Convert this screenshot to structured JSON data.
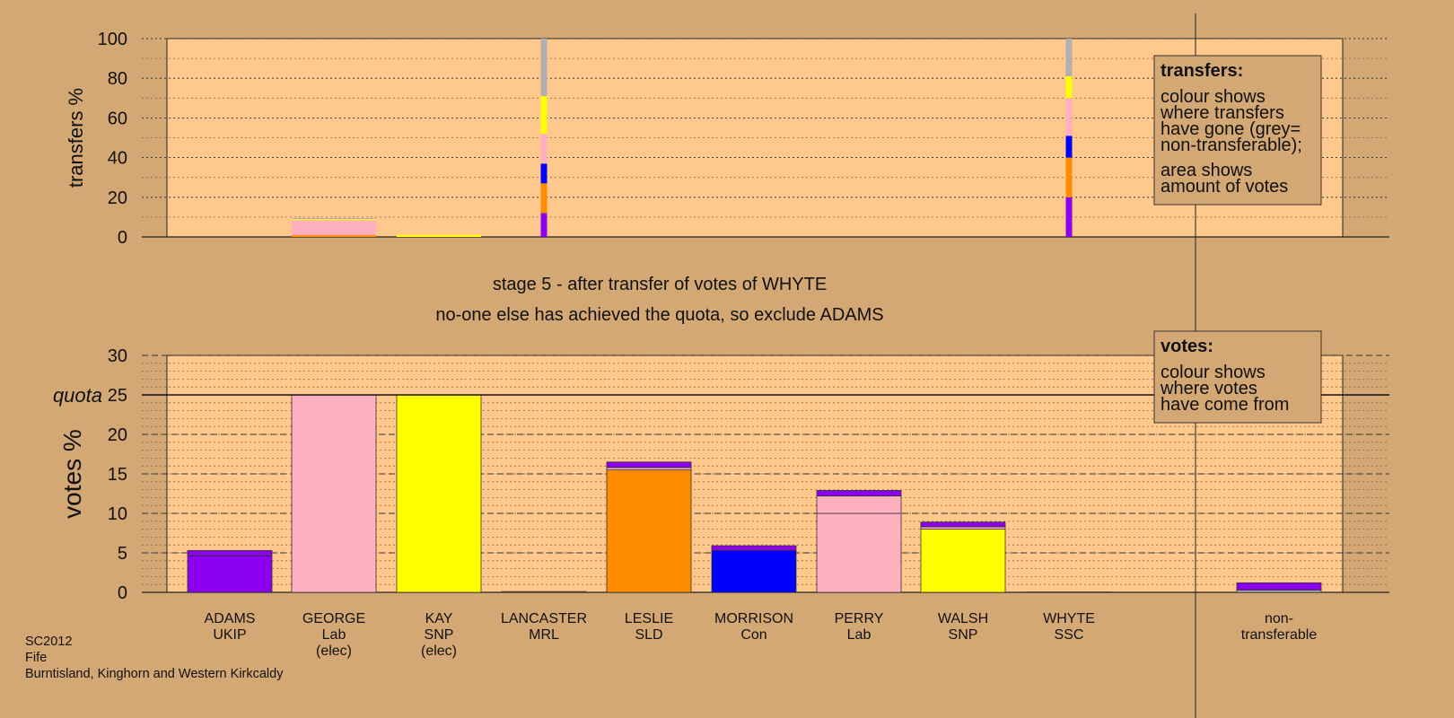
{
  "chart_data": [
    {
      "type": "bar",
      "name": "transfers",
      "ylabel": "transfers %",
      "ylim": [
        0,
        100
      ],
      "yticks": [
        0,
        20,
        40,
        60,
        80,
        100
      ],
      "categories": [
        "ADAMS",
        "GEORGE",
        "KAY",
        "LANCASTER",
        "LESLIE",
        "MORRISON",
        "PERRY",
        "WALSH",
        "WHYTE",
        "non-transferable"
      ],
      "bars": [
        {
          "category": "GEORGE",
          "segments": [
            {
              "value": 1.0,
              "color": "#ff8c00"
            },
            {
              "value": 7.5,
              "color": "#ffb0c0"
            },
            {
              "value": 0.5,
              "color": "#ffff00"
            },
            {
              "value": 0.5,
              "color": "#b0b0b0"
            }
          ]
        },
        {
          "category": "KAY",
          "segments": [
            {
              "value": 1.0,
              "color": "#ffff00"
            }
          ]
        },
        {
          "category": "LANCASTER",
          "segments": [
            {
              "value": 12,
              "color": "#8b00ee"
            },
            {
              "value": 15,
              "color": "#ff8c00"
            },
            {
              "value": 10,
              "color": "#0000ff"
            },
            {
              "value": 15,
              "color": "#ffb0c0"
            },
            {
              "value": 19,
              "color": "#ffff00"
            },
            {
              "value": 29,
              "color": "#b0b0b0"
            }
          ]
        },
        {
          "category": "WHYTE",
          "segments": [
            {
              "value": 20,
              "color": "#8b00ee"
            },
            {
              "value": 20,
              "color": "#ff8c00"
            },
            {
              "value": 11,
              "color": "#0000ff"
            },
            {
              "value": 19,
              "color": "#ffb0c0"
            },
            {
              "value": 11,
              "color": "#ffff00"
            },
            {
              "value": 19,
              "color": "#b0b0b0"
            }
          ]
        }
      ],
      "legend": {
        "title": "transfers:",
        "lines1": [
          "colour shows",
          "where transfers",
          "have gone (grey=",
          "non-transferable);"
        ],
        "lines2": [
          "area shows",
          "amount of votes"
        ]
      }
    },
    {
      "type": "bar",
      "name": "votes",
      "ylabel": "votes %",
      "ylim": [
        0,
        30
      ],
      "yticks": [
        0,
        5,
        10,
        15,
        20,
        25,
        30
      ],
      "quota": 25,
      "quota_label": "quota",
      "categories": [
        "ADAMS",
        "GEORGE",
        "KAY",
        "LANCASTER",
        "LESLIE",
        "MORRISON",
        "PERRY",
        "WALSH",
        "WHYTE",
        "non-transferable"
      ],
      "bars": [
        {
          "category": "ADAMS",
          "segments": [
            {
              "value": 4.6,
              "color": "#8b00ee"
            },
            {
              "value": 0.7,
              "color": "#8b00ee"
            }
          ]
        },
        {
          "category": "GEORGE",
          "segments": [
            {
              "value": 25,
              "color": "#ffb0c0"
            }
          ]
        },
        {
          "category": "KAY",
          "segments": [
            {
              "value": 25,
              "color": "#ffff00"
            }
          ]
        },
        {
          "category": "LANCASTER",
          "segments": [
            {
              "value": 0.1,
              "color": "#ff8c00"
            }
          ]
        },
        {
          "category": "LESLIE",
          "segments": [
            {
              "value": 15.5,
              "color": "#ff8c00"
            },
            {
              "value": 0.3,
              "color": "#ffb0c0"
            },
            {
              "value": 0.7,
              "color": "#8b00ee"
            }
          ]
        },
        {
          "category": "MORRISON",
          "segments": [
            {
              "value": 5.3,
              "color": "#0000ff"
            },
            {
              "value": 0.6,
              "color": "#8b00ee"
            }
          ]
        },
        {
          "category": "PERRY",
          "segments": [
            {
              "value": 10.0,
              "color": "#ffb0c0"
            },
            {
              "value": 2.2,
              "color": "#ffb0c0"
            },
            {
              "value": 0.7,
              "color": "#8b00ee"
            }
          ]
        },
        {
          "category": "WALSH",
          "segments": [
            {
              "value": 8.0,
              "color": "#ffff00"
            },
            {
              "value": 0.3,
              "color": "#ffb0c0"
            },
            {
              "value": 0.6,
              "color": "#8b00ee"
            }
          ]
        },
        {
          "category": "WHYTE",
          "segments": [
            {
              "value": 0.05,
              "color": "#8b00ee"
            }
          ]
        },
        {
          "category": "non-transferable",
          "segments": [
            {
              "value": 0.3,
              "color": "#b0b0b0"
            },
            {
              "value": 0.9,
              "color": "#8b00ee"
            }
          ]
        }
      ],
      "legend": {
        "title": "votes:",
        "lines1": [
          "colour shows",
          "where votes",
          "have come from"
        ]
      }
    }
  ],
  "stage_title": "stage 5 - after transfer of votes of WHYTE",
  "stage_subtitle": "no-one else has achieved the quota, so exclude ADAMS",
  "candidates": [
    {
      "lines": [
        "ADAMS",
        "UKIP"
      ]
    },
    {
      "lines": [
        "GEORGE",
        "Lab",
        "(elec)"
      ]
    },
    {
      "lines": [
        "KAY",
        "SNP",
        "(elec)"
      ]
    },
    {
      "lines": [
        "LANCASTER",
        "MRL"
      ]
    },
    {
      "lines": [
        "LESLIE",
        "SLD"
      ]
    },
    {
      "lines": [
        "MORRISON",
        "Con"
      ]
    },
    {
      "lines": [
        "PERRY",
        "Lab"
      ]
    },
    {
      "lines": [
        "WALSH",
        "SNP"
      ]
    },
    {
      "lines": [
        "WHYTE",
        "SSC"
      ]
    },
    {
      "lines": [
        "non-",
        "transferable"
      ]
    }
  ],
  "footer": [
    "SC2012",
    "Fife",
    "Burntisland, Kinghorn and Western Kirkcaldy"
  ],
  "colors": {
    "background": "#d4a874",
    "plot_area": "#ffc98e",
    "legend_box": "#d4a874"
  }
}
